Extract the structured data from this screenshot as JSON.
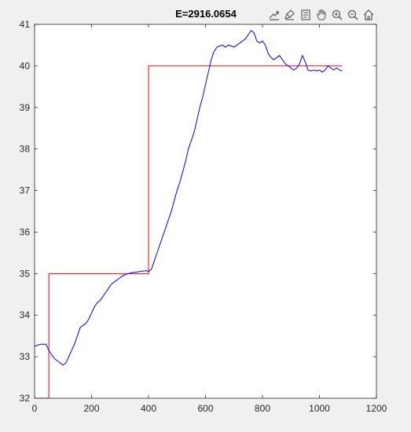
{
  "figure": {
    "background": "#f0f0f0",
    "axes_background": "#ffffff"
  },
  "toolbar": {
    "buttons": [
      {
        "icon": "export-icon"
      },
      {
        "icon": "brush-icon"
      },
      {
        "icon": "data-tips-icon"
      },
      {
        "icon": "pan-hand-icon"
      },
      {
        "icon": "zoom-in-icon"
      },
      {
        "icon": "zoom-out-icon"
      },
      {
        "icon": "home-icon"
      }
    ]
  },
  "chart_data": {
    "type": "line",
    "title": "E=2916.0654",
    "xlabel": "",
    "ylabel": "",
    "xlim": [
      0,
      1200
    ],
    "ylim": [
      32,
      41
    ],
    "xticks": [
      "0",
      "200",
      "400",
      "600",
      "800",
      "1000",
      "1200"
    ],
    "yticks": [
      "32",
      "33",
      "34",
      "35",
      "36",
      "37",
      "38",
      "39",
      "40",
      "41"
    ],
    "grid": false,
    "legend": "none",
    "series": [
      {
        "color": "#ff0000",
        "x": [
          0,
          50,
          50,
          400,
          400,
          1080
        ],
        "y": [
          32,
          32,
          35,
          35,
          40,
          40
        ]
      },
      {
        "color": "#0000ff",
        "x": [
          0,
          20,
          40,
          50,
          60,
          70,
          80,
          90,
          100,
          110,
          120,
          130,
          140,
          150,
          160,
          170,
          180,
          190,
          200,
          210,
          220,
          230,
          240,
          250,
          260,
          270,
          280,
          290,
          300,
          310,
          320,
          330,
          340,
          350,
          360,
          370,
          380,
          390,
          400,
          410,
          420,
          430,
          440,
          450,
          460,
          470,
          480,
          490,
          500,
          510,
          520,
          530,
          540,
          550,
          560,
          570,
          580,
          590,
          600,
          610,
          620,
          630,
          640,
          650,
          660,
          670,
          680,
          690,
          700,
          710,
          720,
          730,
          740,
          750,
          760,
          770,
          780,
          790,
          800,
          810,
          820,
          830,
          840,
          850,
          860,
          870,
          880,
          890,
          900,
          910,
          920,
          930,
          940,
          950,
          960,
          970,
          980,
          990,
          1000,
          1010,
          1020,
          1030,
          1040,
          1050,
          1060,
          1070,
          1080
        ],
        "y": [
          33.25,
          33.3,
          33.3,
          33.15,
          33.05,
          32.95,
          32.9,
          32.85,
          32.8,
          32.85,
          33.0,
          33.15,
          33.3,
          33.5,
          33.7,
          33.75,
          33.8,
          33.9,
          34.05,
          34.2,
          34.3,
          34.35,
          34.45,
          34.55,
          34.65,
          34.75,
          34.8,
          34.85,
          34.9,
          34.95,
          34.98,
          35.0,
          35.02,
          35.03,
          35.04,
          35.05,
          35.06,
          35.07,
          35.05,
          35.1,
          35.3,
          35.5,
          35.7,
          35.9,
          36.1,
          36.3,
          36.5,
          36.75,
          37.0,
          37.2,
          37.45,
          37.7,
          38.0,
          38.2,
          38.4,
          38.7,
          39.0,
          39.25,
          39.55,
          39.85,
          40.15,
          40.35,
          40.45,
          40.48,
          40.5,
          40.45,
          40.5,
          40.48,
          40.45,
          40.5,
          40.55,
          40.6,
          40.65,
          40.75,
          40.85,
          40.8,
          40.6,
          40.55,
          40.6,
          40.5,
          40.3,
          40.2,
          40.15,
          40.2,
          40.25,
          40.15,
          40.05,
          40.0,
          39.95,
          39.9,
          39.95,
          40.05,
          40.25,
          40.1,
          39.9,
          39.88,
          39.9,
          39.88,
          39.9,
          39.85,
          39.9,
          40.0,
          39.95,
          39.9,
          39.95,
          39.9,
          39.88
        ]
      }
    ]
  }
}
